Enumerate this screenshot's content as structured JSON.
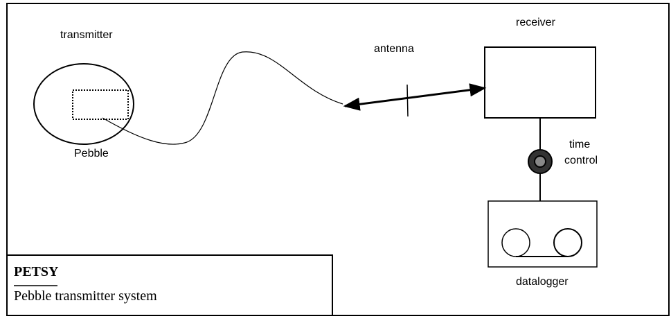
{
  "labels": {
    "transmitter": "transmitter",
    "pebble": "Pebble",
    "antenna": "antenna",
    "receiver": "receiver",
    "time_control": [
      "time",
      "control"
    ],
    "datalogger": "datalogger"
  },
  "caption": {
    "title": "PETSY",
    "text": "Pebble transmitter system"
  }
}
